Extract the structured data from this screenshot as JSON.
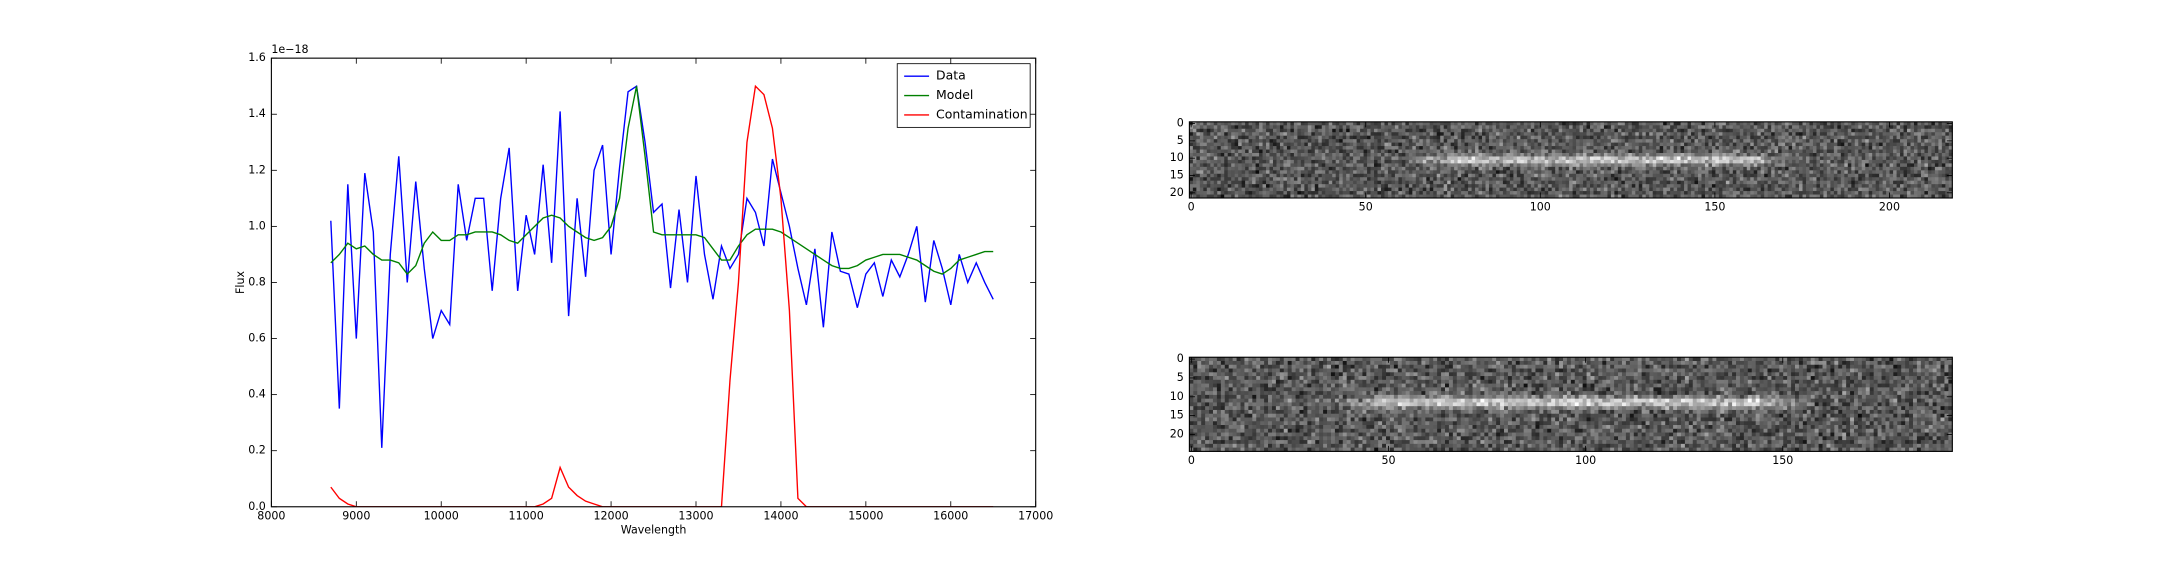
{
  "chart_data": [
    {
      "type": "line",
      "xlabel": "Wavelength",
      "ylabel": "Flux",
      "offset_text": "1e−18",
      "x": [
        8700,
        8800,
        8900,
        9000,
        9100,
        9200,
        9300,
        9400,
        9500,
        9600,
        9700,
        9800,
        9900,
        10000,
        10100,
        10200,
        10300,
        10400,
        10500,
        10600,
        10700,
        10800,
        10900,
        11000,
        11100,
        11200,
        11300,
        11400,
        11500,
        11600,
        11700,
        11800,
        11900,
        12000,
        12100,
        12200,
        12300,
        12400,
        12500,
        12600,
        12700,
        12800,
        12900,
        13000,
        13100,
        13200,
        13300,
        13400,
        13500,
        13600,
        13700,
        13800,
        13900,
        14000,
        14100,
        14200,
        14300,
        14400,
        14500,
        14600,
        14700,
        14800,
        14900,
        15000,
        15100,
        15200,
        15300,
        15400,
        15500,
        15600,
        15700,
        15800,
        15900,
        16000,
        16100,
        16200,
        16300,
        16400,
        16500
      ],
      "series": [
        {
          "name": "Data",
          "color": "#0000ff",
          "values": [
            1.02,
            0.35,
            1.15,
            0.6,
            1.19,
            0.98,
            0.21,
            0.9,
            1.25,
            0.8,
            1.16,
            0.85,
            0.6,
            0.7,
            0.65,
            1.15,
            0.95,
            1.1,
            1.1,
            0.77,
            1.1,
            1.28,
            0.77,
            1.04,
            0.9,
            1.22,
            0.87,
            1.41,
            0.68,
            1.1,
            0.82,
            1.2,
            1.29,
            0.9,
            1.21,
            1.48,
            1.5,
            1.3,
            1.05,
            1.08,
            0.78,
            1.06,
            0.8,
            1.18,
            0.9,
            0.74,
            0.93,
            0.85,
            0.9,
            1.1,
            1.05,
            0.93,
            1.24,
            1.12,
            1.0,
            0.85,
            0.72,
            0.92,
            0.64,
            0.98,
            0.84,
            0.83,
            0.71,
            0.83,
            0.87,
            0.75,
            0.88,
            0.82,
            0.9,
            1.0,
            0.73,
            0.95,
            0.85,
            0.72,
            0.9,
            0.8,
            0.87,
            0.8,
            0.74
          ]
        },
        {
          "name": "Model",
          "color": "#008000",
          "values": [
            0.87,
            0.9,
            0.94,
            0.92,
            0.93,
            0.9,
            0.88,
            0.88,
            0.87,
            0.83,
            0.86,
            0.94,
            0.98,
            0.95,
            0.95,
            0.97,
            0.97,
            0.98,
            0.98,
            0.98,
            0.97,
            0.95,
            0.94,
            0.97,
            1.0,
            1.03,
            1.04,
            1.03,
            1.0,
            0.98,
            0.96,
            0.95,
            0.96,
            1.0,
            1.1,
            1.35,
            1.5,
            1.25,
            0.98,
            0.97,
            0.97,
            0.97,
            0.97,
            0.97,
            0.96,
            0.92,
            0.88,
            0.88,
            0.93,
            0.97,
            0.99,
            0.99,
            0.99,
            0.98,
            0.96,
            0.94,
            0.92,
            0.9,
            0.88,
            0.86,
            0.85,
            0.85,
            0.86,
            0.88,
            0.89,
            0.9,
            0.9,
            0.9,
            0.89,
            0.88,
            0.86,
            0.84,
            0.83,
            0.85,
            0.88,
            0.89,
            0.9,
            0.91,
            0.91
          ]
        },
        {
          "name": "Contamination",
          "color": "#ff0000",
          "values": [
            0.07,
            0.03,
            0.01,
            0,
            0,
            0,
            0,
            0,
            0,
            0,
            0,
            0,
            0,
            0,
            0,
            0,
            0,
            0,
            0,
            0,
            0,
            0,
            0,
            0,
            0,
            0.01,
            0.03,
            0.14,
            0.07,
            0.04,
            0.02,
            0.01,
            0,
            0,
            0,
            0,
            0,
            0,
            0,
            0,
            0,
            0,
            0,
            0,
            0,
            0,
            0,
            0.45,
            0.8,
            1.3,
            1.5,
            1.47,
            1.35,
            1.1,
            0.7,
            0.03,
            0,
            0,
            0,
            0,
            0,
            0,
            0,
            0,
            0,
            0,
            0,
            0,
            0,
            0,
            0,
            0,
            0,
            0,
            0,
            0,
            0,
            0,
            0
          ]
        }
      ],
      "xlim": [
        8000,
        17000
      ],
      "xticks": [
        8000,
        9000,
        10000,
        11000,
        12000,
        13000,
        14000,
        15000,
        16000,
        17000
      ],
      "ylim": [
        0,
        1.6
      ],
      "yticks": [
        {
          "value": 0,
          "label": "0.0"
        },
        {
          "value": 0.2,
          "label": "0.2"
        },
        {
          "value": 0.4,
          "label": "0.4"
        },
        {
          "value": 0.6,
          "label": "0.6"
        },
        {
          "value": 0.8,
          "label": "0.8"
        },
        {
          "value": 1,
          "label": "1.0"
        },
        {
          "value": 1.2,
          "label": "1.2"
        },
        {
          "value": 1.4,
          "label": "1.4"
        },
        {
          "value": 1.6,
          "label": "1.6"
        }
      ],
      "legend": "upper right"
    },
    {
      "type": "image",
      "xlim": [
        -0.5,
        218
      ],
      "ylim": [
        21.5,
        -0.5
      ],
      "xticks": [
        0,
        50,
        100,
        150,
        200
      ],
      "yticks": [
        0,
        5,
        10,
        15,
        20
      ]
    },
    {
      "type": "image",
      "xlim": [
        -0.5,
        193
      ],
      "ylim": [
        24.5,
        -0.5
      ],
      "xticks": [
        0,
        50,
        100,
        150
      ],
      "yticks": [
        0,
        5,
        10,
        15,
        20
      ]
    }
  ]
}
